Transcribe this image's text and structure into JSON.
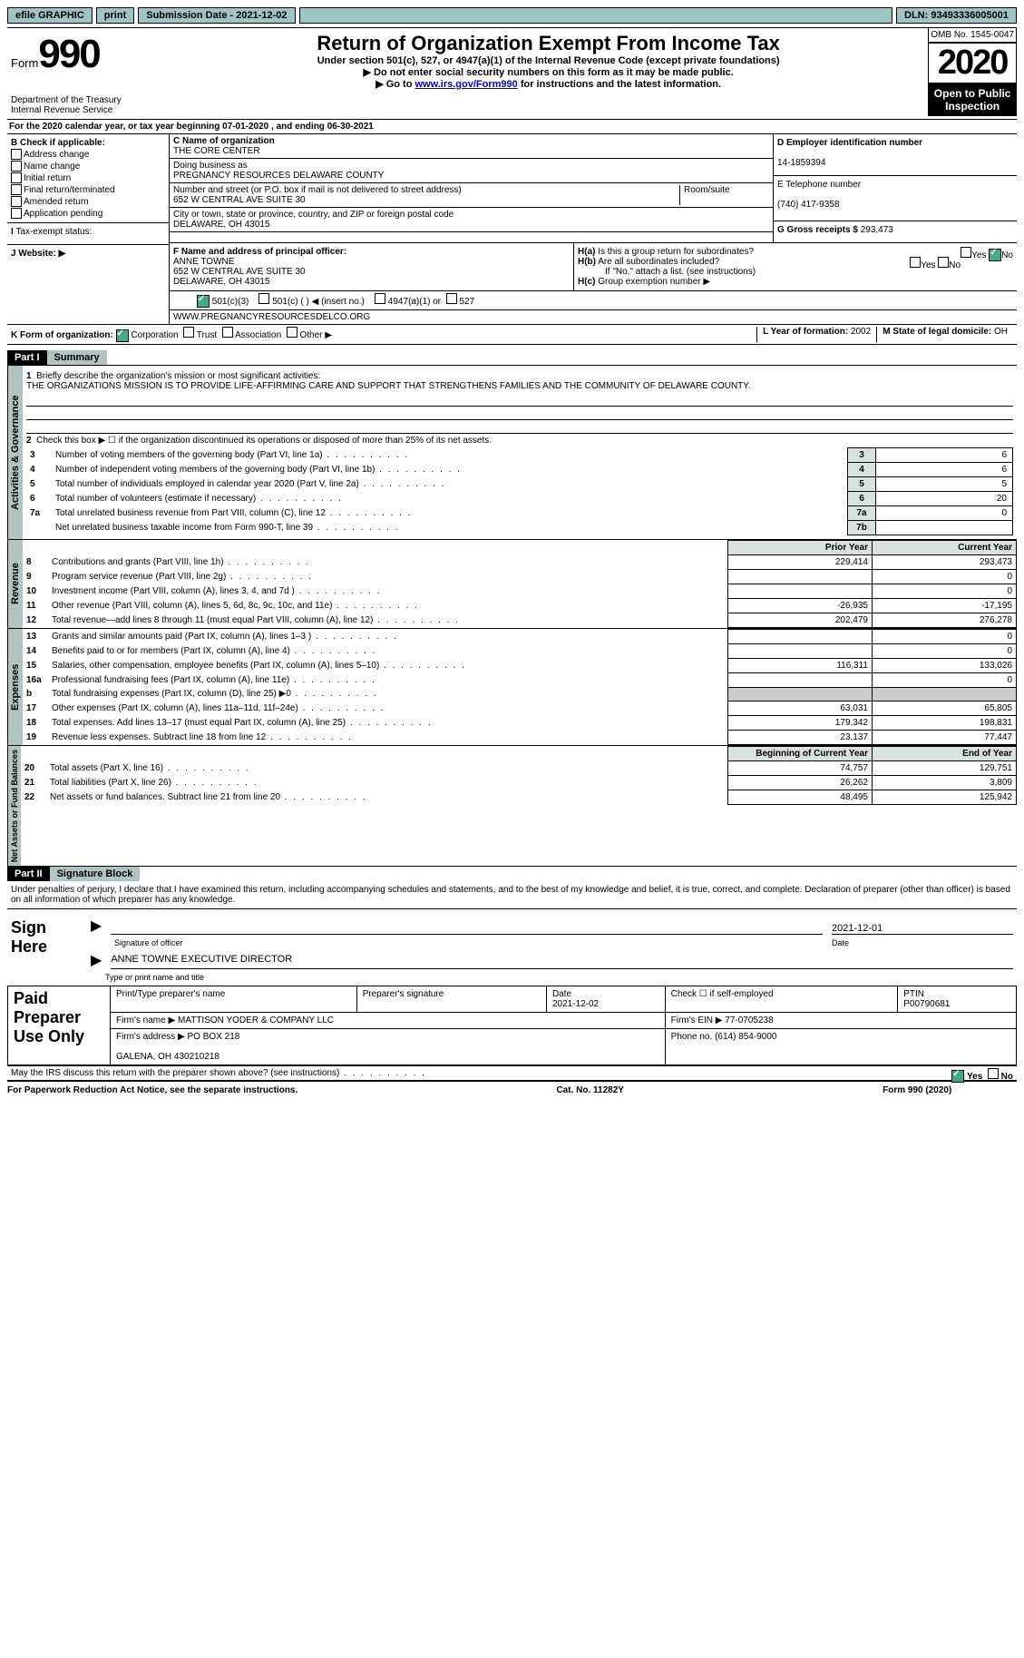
{
  "topbar": {
    "efile": "efile GRAPHIC",
    "print": "print",
    "subdate_label": "Submission Date - 2021-12-02",
    "dln_label": "DLN: 93493336005001"
  },
  "header": {
    "form": "Form",
    "num": "990",
    "dept": "Department of the Treasury\nInternal Revenue Service",
    "title": "Return of Organization Exempt From Income Tax",
    "sub1": "Under section 501(c), 527, or 4947(a)(1) of the Internal Revenue Code (except private foundations)",
    "sub2": "▶ Do not enter social security numbers on this form as it may be made public.",
    "sub3": "▶ Go to www.irs.gov/Form990 for instructions and the latest information.",
    "link": "www.irs.gov/Form990",
    "omb": "OMB No. 1545-0047",
    "year": "2020",
    "open": "Open to Public\nInspection"
  },
  "A": "For the 2020 calendar year, or tax year beginning 07-01-2020    , and ending 06-30-2021",
  "B": {
    "label": "B Check if applicable:",
    "opts": [
      "Address change",
      "Name change",
      "Initial return",
      "Final return/terminated",
      "Amended return",
      "Application pending"
    ]
  },
  "C": {
    "name_lbl": "C Name of organization",
    "name": "THE CORE CENTER",
    "dba_lbl": "Doing business as",
    "dba": "PREGNANCY RESOURCES DELAWARE COUNTY",
    "addr_lbl": "Number and street (or P.O. box if mail is not delivered to street address)",
    "room_lbl": "Room/suite",
    "addr": "652 W CENTRAL AVE SUITE 30",
    "city_lbl": "City or town, state or province, country, and ZIP or foreign postal code",
    "city": "DELAWARE, OH  43015"
  },
  "D": {
    "lbl": "D Employer identification number",
    "val": "14-1859394"
  },
  "E": {
    "lbl": "E Telephone number",
    "val": "(740) 417-9358"
  },
  "G": {
    "lbl": "G Gross receipts $",
    "val": "293,473"
  },
  "F": {
    "lbl": "F  Name and address of principal officer:",
    "name": "ANNE TOWNE",
    "addr": "652 W CENTRAL AVE SUITE 30\nDELAWARE, OH  43015"
  },
  "H": {
    "a": "Is this a group return for subordinates?",
    "b": "Are all subordinates included?",
    "note": "If \"No,\" attach a list. (see instructions)",
    "c": "Group exemption number ▶",
    "yes": "Yes",
    "no": "No"
  },
  "I": {
    "lbl": "Tax-exempt status:",
    "opts": [
      "501(c)(3)",
      "501(c) (  ) ◀ (insert no.)",
      "4947(a)(1) or",
      "527"
    ]
  },
  "J": {
    "lbl": "Website: ▶",
    "val": "WWW.PREGNANCYRESOURCESDELCO.ORG"
  },
  "K": {
    "lbl": "K Form of organization:",
    "opts": [
      "Corporation",
      "Trust",
      "Association",
      "Other ▶"
    ]
  },
  "L": {
    "lbl": "L Year of formation:",
    "val": "2002"
  },
  "M": {
    "lbl": "M State of legal domicile:",
    "val": "OH"
  },
  "part1": {
    "hdr": "Part I",
    "title": "Summary",
    "line1": "Briefly describe the organization's mission or most significant activities:",
    "mission": "THE ORGANIZATIONS MISSION IS TO PROVIDE LIFE-AFFIRMING CARE AND SUPPORT THAT STRENGTHENS FAMILIES AND THE COMMUNITY OF DELAWARE COUNTY.",
    "line2": "Check this box ▶ ☐  if the organization discontinued its operations or disposed of more than 25% of its net assets.",
    "gov_rows": [
      {
        "n": "3",
        "t": "Number of voting members of the governing body (Part VI, line 1a)",
        "box": "3",
        "v": "6"
      },
      {
        "n": "4",
        "t": "Number of independent voting members of the governing body (Part VI, line 1b)",
        "box": "4",
        "v": "6"
      },
      {
        "n": "5",
        "t": "Total number of individuals employed in calendar year 2020 (Part V, line 2a)",
        "box": "5",
        "v": "5"
      },
      {
        "n": "6",
        "t": "Total number of volunteers (estimate if necessary)",
        "box": "6",
        "v": "20"
      },
      {
        "n": "7a",
        "t": "Total unrelated business revenue from Part VIII, column (C), line 12",
        "box": "7a",
        "v": "0"
      },
      {
        "n": "",
        "t": "Net unrelated business taxable income from Form 990-T, line 39",
        "box": "7b",
        "v": ""
      }
    ],
    "col_prior": "Prior Year",
    "col_curr": "Current Year",
    "rev_rows": [
      {
        "n": "8",
        "t": "Contributions and grants (Part VIII, line 1h)",
        "p": "229,414",
        "c": "293,473"
      },
      {
        "n": "9",
        "t": "Program service revenue (Part VIII, line 2g)",
        "p": "",
        "c": "0"
      },
      {
        "n": "10",
        "t": "Investment income (Part VIII, column (A), lines 3, 4, and 7d )",
        "p": "",
        "c": "0"
      },
      {
        "n": "11",
        "t": "Other revenue (Part VIII, column (A), lines 5, 6d, 8c, 9c, 10c, and 11e)",
        "p": "-26,935",
        "c": "-17,195"
      },
      {
        "n": "12",
        "t": "Total revenue—add lines 8 through 11 (must equal Part VIII, column (A), line 12)",
        "p": "202,479",
        "c": "276,278"
      }
    ],
    "exp_rows": [
      {
        "n": "13",
        "t": "Grants and similar amounts paid (Part IX, column (A), lines 1–3 )",
        "p": "",
        "c": "0"
      },
      {
        "n": "14",
        "t": "Benefits paid to or for members (Part IX, column (A), line 4)",
        "p": "",
        "c": "0"
      },
      {
        "n": "15",
        "t": "Salaries, other compensation, employee benefits (Part IX, column (A), lines 5–10)",
        "p": "116,311",
        "c": "133,026"
      },
      {
        "n": "16a",
        "t": "Professional fundraising fees (Part IX, column (A), line 11e)",
        "p": "",
        "c": "0"
      },
      {
        "n": "b",
        "t": "Total fundraising expenses (Part IX, column (D), line 25) ▶0",
        "p": "gray",
        "c": "gray"
      },
      {
        "n": "17",
        "t": "Other expenses (Part IX, column (A), lines 11a–11d, 11f–24e)",
        "p": "63,031",
        "c": "65,805"
      },
      {
        "n": "18",
        "t": "Total expenses. Add lines 13–17 (must equal Part IX, column (A), line 25)",
        "p": "179,342",
        "c": "198,831"
      },
      {
        "n": "19",
        "t": "Revenue less expenses. Subtract line 18 from line 12",
        "p": "23,137",
        "c": "77,447"
      }
    ],
    "col_beg": "Beginning of Current Year",
    "col_end": "End of Year",
    "net_rows": [
      {
        "n": "20",
        "t": "Total assets (Part X, line 16)",
        "p": "74,757",
        "c": "129,751"
      },
      {
        "n": "21",
        "t": "Total liabilities (Part X, line 26)",
        "p": "26,262",
        "c": "3,809"
      },
      {
        "n": "22",
        "t": "Net assets or fund balances. Subtract line 21 from line 20",
        "p": "48,495",
        "c": "125,942"
      }
    ]
  },
  "part2": {
    "hdr": "Part II",
    "title": "Signature Block",
    "decl": "Under penalties of perjury, I declare that I have examined this return, including accompanying schedules and statements, and to the best of my knowledge and belief, it is true, correct, and complete. Declaration of preparer (other than officer) is based on all information of which preparer has any knowledge."
  },
  "sign": {
    "here": "Sign Here",
    "sig": "Signature of officer",
    "date": "Date",
    "dateval": "2021-12-01",
    "name": "ANNE TOWNE  EXECUTIVE DIRECTOR",
    "typ": "Type or print name and title"
  },
  "paid": {
    "title": "Paid Preparer Use Only",
    "h1": "Print/Type preparer's name",
    "h2": "Preparer's signature",
    "h3": "Date",
    "dateval": "2021-12-02",
    "h4": "Check ☐ if self-employed",
    "h5": "PTIN",
    "ptin": "P00790681",
    "firm_lbl": "Firm's name    ▶",
    "firm": "MATTISON YODER & COMPANY LLC",
    "ein_lbl": "Firm's EIN ▶",
    "ein": "77-0705238",
    "addr_lbl": "Firm's address ▶",
    "addr": "PO BOX 218\n\nGALENA, OH  430210218",
    "phone_lbl": "Phone no.",
    "phone": "(614) 854-9000"
  },
  "discuss": "May the IRS discuss this return with the preparer shown above? (see instructions)",
  "footer": {
    "left": "For Paperwork Reduction Act Notice, see the separate instructions.",
    "mid": "Cat. No. 11282Y",
    "right": "Form 990 (2020)"
  },
  "tabs": {
    "gov": "Activities & Governance",
    "rev": "Revenue",
    "exp": "Expenses",
    "net": "Net Assets or Fund Balances"
  }
}
